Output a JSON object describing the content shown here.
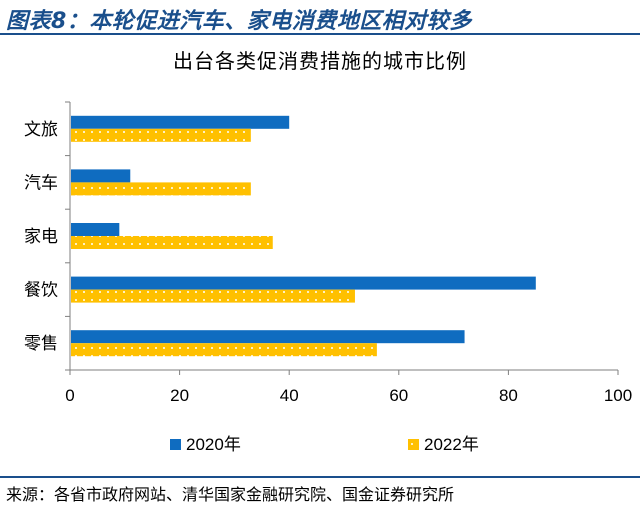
{
  "header": {
    "figure_title": "图表8：本轮促进汽车、家电消费地区相对较多"
  },
  "chart_data": {
    "type": "bar",
    "orientation": "horizontal",
    "title": "出台各类促消费措施的城市比例",
    "categories": [
      "文旅",
      "汽车",
      "家电",
      "餐饮",
      "零售"
    ],
    "series": [
      {
        "name": "2020年",
        "values": [
          40,
          11,
          9,
          85,
          72
        ],
        "color": "#0f6cc0"
      },
      {
        "name": "2022年",
        "values": [
          33,
          33,
          37,
          52,
          56
        ],
        "color": "#ffc000",
        "pattern": "white-dots"
      }
    ],
    "xlim": [
      0,
      100
    ],
    "xticks": [
      "0",
      "20",
      "40",
      "60",
      "80",
      "100"
    ],
    "grid": false,
    "legend_position": "bottom"
  },
  "footer": {
    "source": "来源：各省市政府网站、清华国家金融研究院、国金证券研究所"
  },
  "colors": {
    "accent": "#1a4f8c"
  }
}
